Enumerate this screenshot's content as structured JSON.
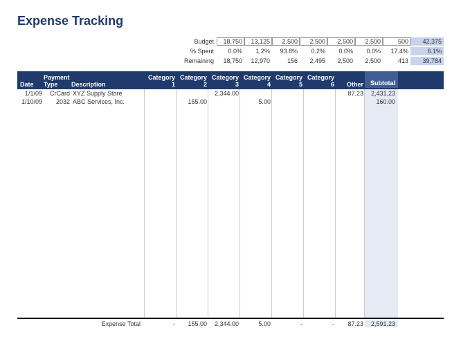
{
  "title": "Expense Tracking",
  "summary": {
    "labels": {
      "budget": "Budget",
      "spent": "% Spent",
      "remaining": "Remaining"
    },
    "budget": [
      "18,750",
      "13,125",
      "2,500",
      "2,500",
      "2,500",
      "2,500",
      "500"
    ],
    "budget_total": "42,375",
    "spent": [
      "0.0%",
      "1.2%",
      "93.8%",
      "0.2%",
      "0.0%",
      "0.0%",
      "17.4%"
    ],
    "spent_total": "6.1%",
    "remaining": [
      "18,750",
      "12,970",
      "156",
      "2,495",
      "2,500",
      "2,500",
      "413"
    ],
    "remaining_total": "39,784"
  },
  "headers": {
    "date": "Date",
    "payment": "Payment Type",
    "description": "Description",
    "cats": [
      "Category 1",
      "Category 2",
      "Category 3",
      "Category 4",
      "Category 5",
      "Category 6"
    ],
    "other": "Other",
    "subtotal": "Subtotal"
  },
  "rows": [
    {
      "date": "1/1/09",
      "pay": "CrCard",
      "desc": "XYZ Supply Store",
      "cats": [
        "",
        "",
        "2,344.00",
        "",
        "",
        ""
      ],
      "other": "87.23",
      "sub": "2,431.23"
    },
    {
      "date": "1/10/09",
      "pay": "2032",
      "desc": "ABC Services, Inc.",
      "cats": [
        "",
        "155.00",
        "",
        "5.00",
        "",
        ""
      ],
      "other": "",
      "sub": "160.00"
    }
  ],
  "footer": {
    "label": "Expense Total",
    "cats": [
      "-",
      "155.00",
      "2,344.00",
      "5.00",
      "-",
      "-"
    ],
    "other": "87.23",
    "sub": "2,591.23"
  },
  "colors": {
    "title": "#1f3a6b",
    "header_bg": "#1f3a6b",
    "sub_header_bg": "#415e94",
    "sub_col_bg": "#e5eaf5",
    "total_bg": "#c7d4ec",
    "grid": "#cccccc"
  }
}
